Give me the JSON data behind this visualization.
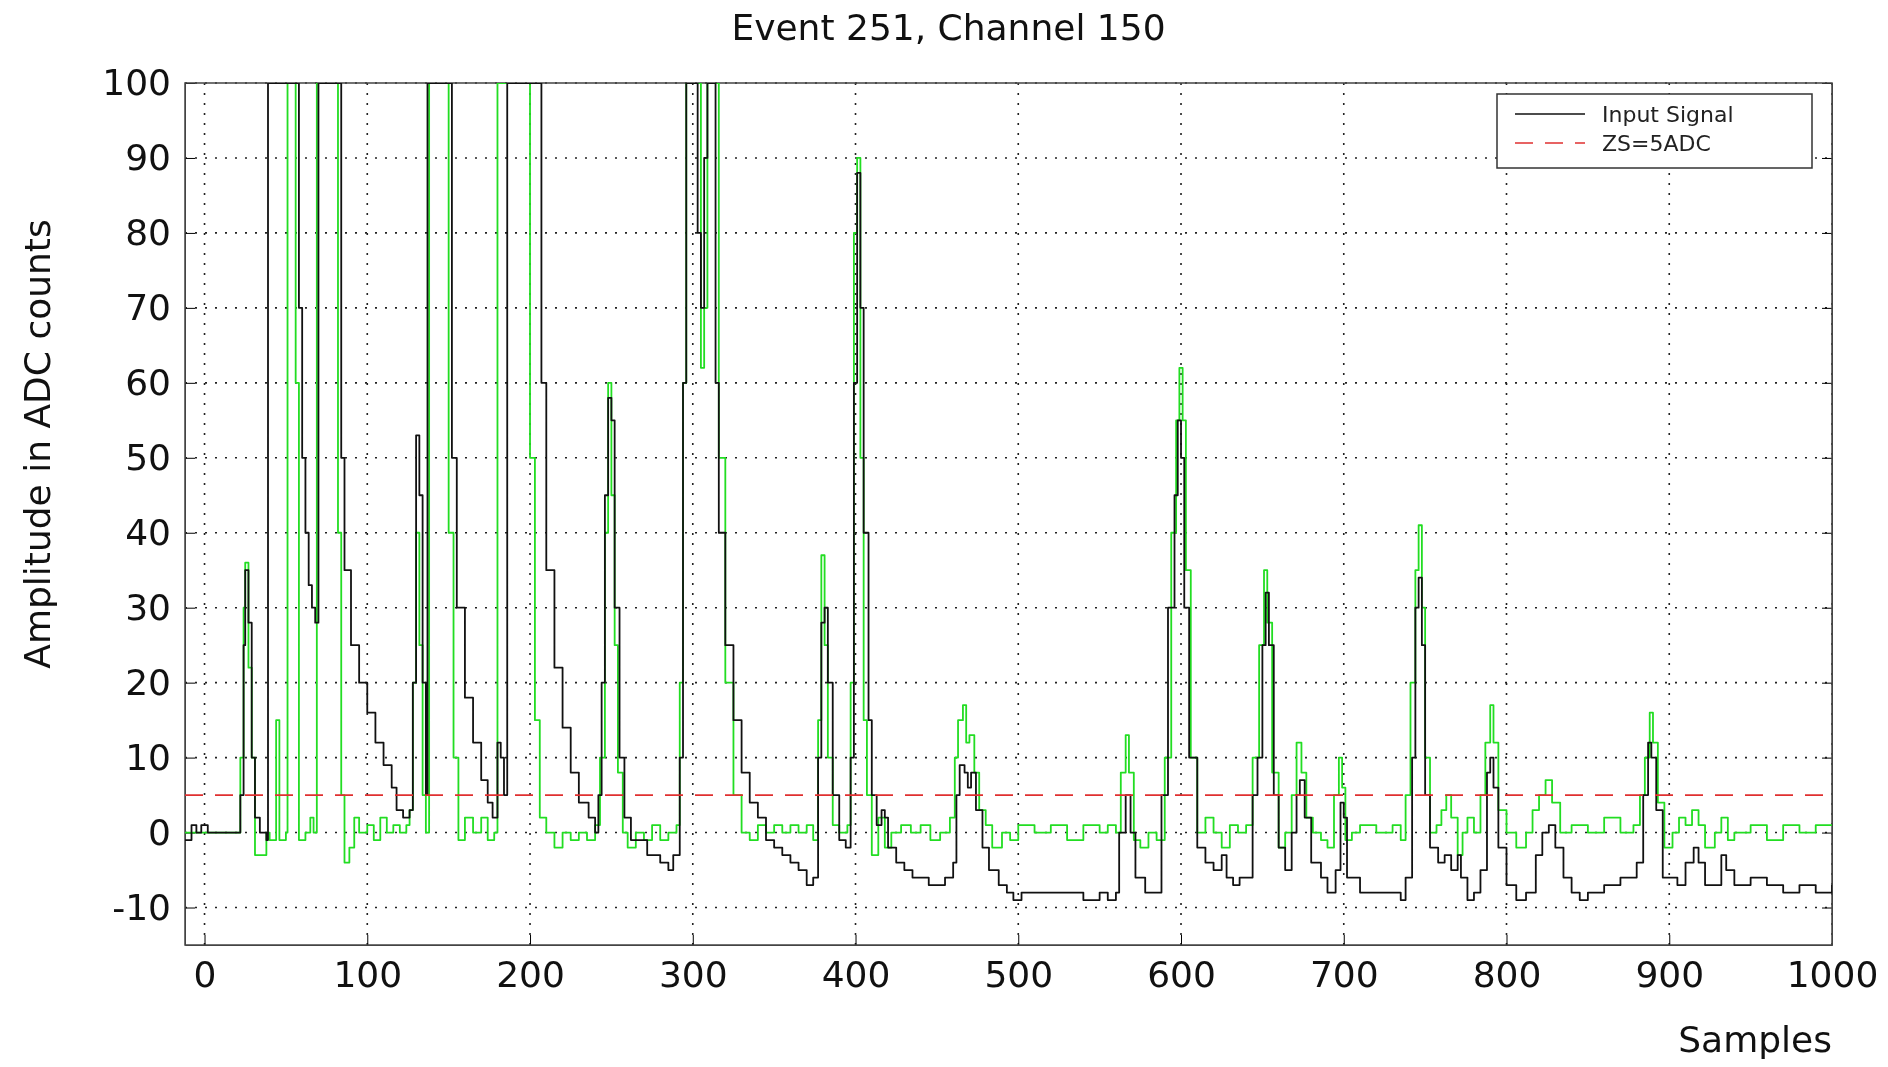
{
  "chart_data": {
    "type": "step",
    "title": "Event 251, Channel 150",
    "xlabel": "Samples",
    "ylabel": "Amplitude in ADC counts",
    "xlim": [
      -12,
      1000
    ],
    "ylim": [
      -15,
      100
    ],
    "xticks": [
      0,
      100,
      200,
      300,
      400,
      500,
      600,
      700,
      800,
      900,
      1000
    ],
    "yticks": [
      -10,
      0,
      10,
      20,
      30,
      40,
      50,
      60,
      70,
      80,
      90,
      100
    ],
    "grid": true,
    "legend": "top right",
    "line_style": "solid",
    "ref_lines": [
      {
        "axis": "y",
        "value": 5,
        "label": "ZS=5ADC",
        "color": "#e03030",
        "line_style": "dashed"
      }
    ],
    "series": [
      {
        "name": "Input Signal",
        "color": "#111111",
        "x": [
          -12,
          -8,
          -5,
          -2,
          2,
          20,
          22,
          24,
          25,
          27,
          29,
          31,
          34,
          38,
          39,
          56,
          58,
          60,
          62,
          64,
          66,
          68,
          70,
          82,
          84,
          86,
          90,
          95,
          100,
          105,
          110,
          115,
          118,
          122,
          126,
          128,
          130,
          132,
          134,
          136,
          137,
          150,
          152,
          155,
          160,
          165,
          170,
          174,
          177,
          180,
          182,
          184,
          186,
          205,
          207,
          210,
          215,
          220,
          225,
          230,
          236,
          240,
          242,
          244,
          246,
          248,
          250,
          252,
          255,
          258,
          262,
          268,
          272,
          280,
          285,
          288,
          292,
          294,
          296,
          302,
          303,
          305,
          307,
          309,
          312,
          314,
          316,
          320,
          325,
          330,
          335,
          340,
          345,
          350,
          355,
          360,
          365,
          370,
          374,
          377,
          379,
          381,
          383,
          386,
          390,
          394,
          397,
          399,
          401,
          403,
          405,
          408,
          410,
          413,
          416,
          418,
          420,
          425,
          430,
          435,
          440,
          445,
          450,
          455,
          460,
          462,
          464,
          467,
          469,
          471,
          474,
          478,
          482,
          488,
          493,
          497,
          502,
          510,
          520,
          530,
          540,
          550,
          555,
          560,
          562,
          566,
          569,
          572,
          578,
          585,
          588,
          592,
          596,
          598,
          600,
          602,
          605,
          610,
          615,
          620,
          625,
          628,
          632,
          636,
          640,
          644,
          647,
          650,
          652,
          654,
          657,
          660,
          664,
          668,
          671,
          673,
          676,
          680,
          686,
          690,
          695,
          698,
          700,
          702,
          710,
          720,
          730,
          735,
          738,
          742,
          744,
          746,
          748,
          750,
          753,
          758,
          762,
          766,
          770,
          772,
          776,
          780,
          784,
          788,
          790,
          792,
          795,
          800,
          806,
          812,
          818,
          822,
          826,
          830,
          835,
          840,
          845,
          850,
          860,
          870,
          876,
          880,
          884,
          887,
          889,
          892,
          896,
          905,
          910,
          915,
          918,
          922,
          928,
          932,
          935,
          940,
          950,
          960,
          970,
          980,
          990,
          1000
        ],
        "values": [
          -1,
          1,
          0,
          1,
          0,
          0,
          5,
          25,
          35,
          28,
          10,
          2,
          0,
          -1,
          100,
          100,
          70,
          50,
          40,
          33,
          30,
          28,
          100,
          100,
          50,
          35,
          25,
          20,
          16,
          12,
          9,
          6,
          3,
          2,
          3,
          20,
          53,
          45,
          20,
          5,
          100,
          100,
          50,
          30,
          18,
          12,
          7,
          4,
          2,
          12,
          10,
          5,
          100,
          100,
          60,
          35,
          22,
          14,
          8,
          4,
          2,
          0,
          5,
          20,
          45,
          58,
          55,
          30,
          10,
          2,
          -1,
          -1,
          -3,
          -4,
          -5,
          -3,
          10,
          60,
          100,
          100,
          80,
          70,
          90,
          100,
          100,
          60,
          40,
          25,
          15,
          8,
          4,
          2,
          -1,
          -2,
          -3,
          -4,
          -5,
          -7,
          -6,
          10,
          28,
          30,
          20,
          5,
          -1,
          -2,
          10,
          60,
          88,
          70,
          40,
          15,
          5,
          1,
          3,
          2,
          -2,
          -4,
          -5,
          -6,
          -6,
          -7,
          -7,
          -6,
          -4,
          5,
          9,
          8,
          6,
          8,
          3,
          -2,
          -5,
          -7,
          -8,
          -9,
          -8,
          -8,
          -8,
          -8,
          -9,
          -8,
          -9,
          -8,
          0,
          5,
          0,
          -6,
          -8,
          -8,
          5,
          30,
          45,
          55,
          50,
          30,
          10,
          -2,
          -4,
          -5,
          -3,
          -6,
          -7,
          -6,
          -6,
          5,
          10,
          25,
          32,
          25,
          5,
          -2,
          -5,
          0,
          5,
          7,
          2,
          -4,
          -6,
          -8,
          -5,
          4,
          2,
          -6,
          -8,
          -8,
          -8,
          -9,
          -6,
          10,
          30,
          34,
          25,
          5,
          -2,
          -4,
          -3,
          -5,
          -3,
          -6,
          -9,
          -8,
          -5,
          8,
          10,
          6,
          -2,
          -7,
          -9,
          -8,
          -3,
          0,
          1,
          -2,
          -6,
          -8,
          -9,
          -8,
          -7,
          -6,
          -6,
          -4,
          5,
          12,
          10,
          3,
          -6,
          -7,
          -4,
          -2,
          -4,
          -7,
          -7,
          -3,
          -5,
          -7,
          -6,
          -7,
          -8,
          -7,
          -8,
          -7
        ]
      },
      {
        "color": "#22dd22",
        "x": [
          -12,
          20,
          22,
          24,
          25,
          27,
          29,
          31,
          36,
          38,
          40,
          44,
          46,
          50,
          51,
          56,
          58,
          62,
          65,
          67,
          69,
          80,
          82,
          84,
          86,
          89,
          92,
          95,
          100,
          104,
          108,
          112,
          116,
          120,
          124,
          126,
          128,
          130,
          132,
          134,
          136,
          138,
          148,
          150,
          153,
          156,
          160,
          165,
          170,
          174,
          178,
          180,
          198,
          200,
          203,
          206,
          210,
          215,
          220,
          225,
          230,
          235,
          240,
          243,
          246,
          248,
          250,
          252,
          254,
          257,
          260,
          265,
          270,
          275,
          280,
          285,
          290,
          292,
          294,
          296,
          303,
          305,
          307,
          309,
          313,
          316,
          320,
          325,
          330,
          335,
          340,
          345,
          350,
          355,
          360,
          365,
          370,
          374,
          377,
          379,
          381,
          383,
          386,
          390,
          395,
          397,
          399,
          401,
          403,
          405,
          407,
          410,
          414,
          418,
          422,
          428,
          434,
          440,
          446,
          452,
          458,
          461,
          463,
          466,
          468,
          470,
          473,
          476,
          480,
          484,
          490,
          495,
          500,
          510,
          520,
          530,
          540,
          550,
          555,
          560,
          563,
          566,
          568,
          571,
          575,
          580,
          585,
          590,
          594,
          597,
          599,
          601,
          603,
          606,
          610,
          615,
          620,
          625,
          630,
          635,
          640,
          644,
          648,
          651,
          653,
          656,
          660,
          664,
          668,
          671,
          674,
          677,
          681,
          686,
          690,
          694,
          697,
          699,
          701,
          705,
          710,
          720,
          730,
          735,
          738,
          741,
          744,
          746,
          748,
          750,
          753,
          757,
          760,
          763,
          766,
          770,
          773,
          776,
          780,
          784,
          787,
          790,
          792,
          795,
          800,
          806,
          812,
          816,
          820,
          824,
          828,
          833,
          840,
          850,
          860,
          870,
          878,
          882,
          885,
          888,
          890,
          893,
          897,
          902,
          906,
          910,
          914,
          918,
          922,
          928,
          932,
          936,
          940,
          950,
          960,
          970,
          980,
          990,
          1000
        ],
        "values": [
          0,
          0,
          10,
          30,
          36,
          22,
          10,
          -3,
          -3,
          0,
          -1,
          15,
          -1,
          0,
          100,
          60,
          -1,
          0,
          2,
          0,
          100,
          100,
          40,
          5,
          -4,
          -2,
          2,
          0,
          1,
          -1,
          2,
          0,
          1,
          0,
          1,
          3,
          20,
          40,
          25,
          5,
          0,
          100,
          100,
          40,
          10,
          -1,
          2,
          0,
          2,
          -1,
          0,
          100,
          100,
          50,
          15,
          2,
          0,
          -2,
          0,
          -1,
          0,
          -1,
          1,
          10,
          40,
          60,
          45,
          25,
          8,
          0,
          -2,
          0,
          -1,
          1,
          -1,
          0,
          1,
          20,
          60,
          100,
          100,
          62,
          70,
          100,
          100,
          50,
          20,
          5,
          0,
          -1,
          1,
          0,
          1,
          0,
          1,
          0,
          1,
          -1,
          15,
          37,
          25,
          10,
          1,
          0,
          1,
          20,
          80,
          90,
          50,
          15,
          5,
          -3,
          2,
          -2,
          0,
          1,
          0,
          1,
          -1,
          0,
          2,
          10,
          15,
          17,
          12,
          13,
          8,
          3,
          1,
          -2,
          0,
          -1,
          1,
          0,
          1,
          -1,
          1,
          0,
          1,
          0,
          8,
          13,
          8,
          -1,
          -2,
          0,
          -1,
          10,
          40,
          55,
          62,
          55,
          35,
          10,
          0,
          2,
          0,
          -2,
          1,
          0,
          1,
          10,
          25,
          35,
          28,
          8,
          -2,
          0,
          5,
          12,
          8,
          2,
          0,
          -1,
          -2,
          5,
          10,
          6,
          -1,
          0,
          1,
          0,
          1,
          -1,
          5,
          20,
          35,
          41,
          30,
          10,
          0,
          1,
          3,
          5,
          2,
          -3,
          0,
          2,
          0,
          5,
          12,
          17,
          12,
          3,
          0,
          -2,
          0,
          3,
          5,
          7,
          4,
          0,
          1,
          0,
          2,
          0,
          1,
          5,
          10,
          16,
          12,
          4,
          -2,
          0,
          2,
          1,
          3,
          1,
          -2,
          0,
          2,
          -1,
          0,
          1,
          -1,
          1,
          0,
          1,
          1
        ]
      }
    ]
  }
}
